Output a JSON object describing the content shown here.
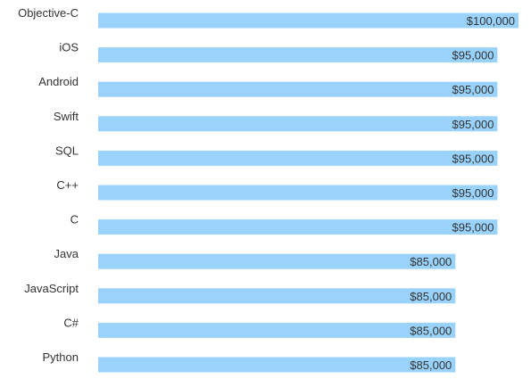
{
  "chart_data": {
    "type": "bar",
    "orientation": "horizontal",
    "categories": [
      "Objective-C",
      "iOS",
      "Android",
      "Swift",
      "SQL",
      "C++",
      "C",
      "Java",
      "JavaScript",
      "C#",
      "Python"
    ],
    "values": [
      100000,
      95000,
      95000,
      95000,
      95000,
      95000,
      95000,
      85000,
      85000,
      85000,
      85000
    ],
    "value_labels": [
      "$100,000",
      "$95,000",
      "$95,000",
      "$95,000",
      "$95,000",
      "$95,000",
      "$95,000",
      "$85,000",
      "$85,000",
      "$85,000",
      "$85,000"
    ],
    "title": "",
    "xlabel": "",
    "ylabel": "",
    "xlim": [
      0,
      100000
    ],
    "grid": false,
    "legend": "none",
    "bar_color": "#99d3fb",
    "label_color": "#333333"
  }
}
